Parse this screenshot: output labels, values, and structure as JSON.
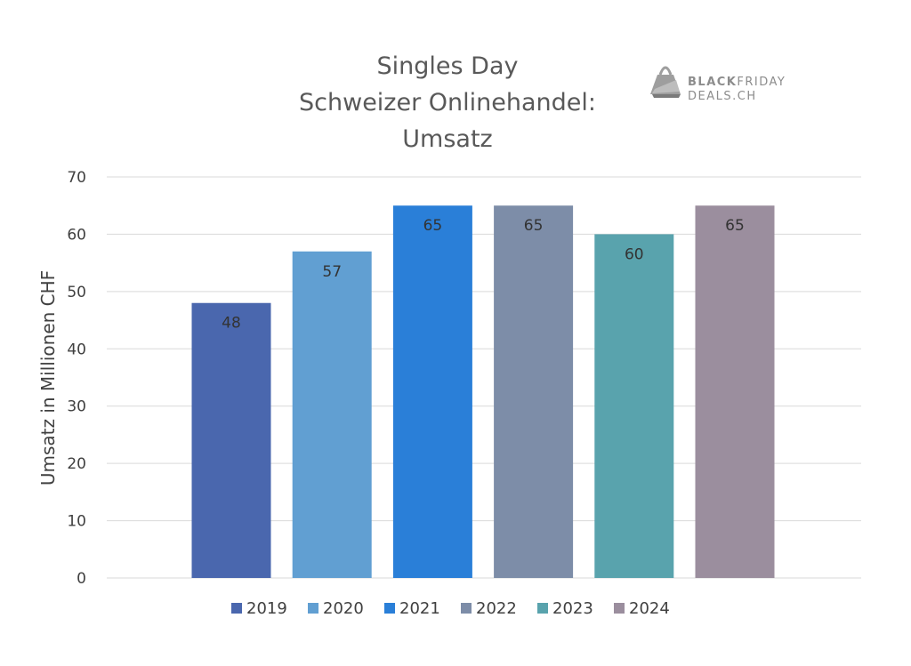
{
  "chart_data": {
    "type": "bar",
    "title_lines": [
      "Singles Day",
      "Schweizer Onlinehandel:",
      "Umsatz"
    ],
    "ylabel": "Umsatz in Millionen CHF",
    "xlabel": "",
    "ylim": [
      0,
      70
    ],
    "yticks": [
      0,
      10,
      20,
      30,
      40,
      50,
      60,
      70
    ],
    "grid": true,
    "legend_position": "bottom",
    "series": [
      {
        "name": "2019",
        "value": 48,
        "label": "48",
        "color": "#4a67ae"
      },
      {
        "name": "2020",
        "value": 57,
        "label": "57",
        "color": "#619fd2"
      },
      {
        "name": "2021",
        "value": 65,
        "label": "65",
        "color": "#2a7fd8"
      },
      {
        "name": "2022",
        "value": 65,
        "label": "65",
        "color": "#7d8da8"
      },
      {
        "name": "2023",
        "value": 60,
        "label": "60",
        "color": "#59a3ad"
      },
      {
        "name": "2024",
        "value": 65,
        "label": "65",
        "color": "#9b8e9e"
      }
    ]
  },
  "logo": {
    "line1_bold": "BLACK",
    "line1_light": "FRIDAY",
    "line2": "DEALS.CH",
    "icon": "shopping-bag-icon",
    "color": "#8c8c8c"
  }
}
